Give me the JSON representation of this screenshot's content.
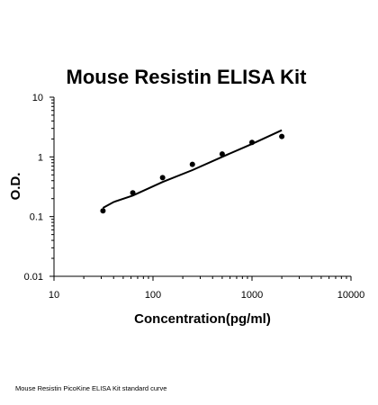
{
  "chart_data": {
    "type": "scatter",
    "title": "Mouse Resistin ELISA Kit",
    "xlabel": "Concentration(pg/ml)",
    "ylabel": "O.D.",
    "xscale": "log",
    "yscale": "log",
    "xlim": [
      10,
      10000
    ],
    "ylim": [
      0.01,
      10
    ],
    "x_ticks": [
      "10",
      "100",
      "1000",
      "10000"
    ],
    "y_ticks": [
      "0.01",
      "0.1",
      "1",
      "10"
    ],
    "grid": false,
    "legend": "none",
    "series": [
      {
        "x": [
          31.25,
          62.5,
          125,
          250,
          500,
          1000,
          2000
        ],
        "y": [
          0.125,
          0.25,
          0.45,
          0.75,
          1.12,
          1.75,
          2.2
        ]
      }
    ],
    "fit_curve": {
      "x": [
        31.25,
        40,
        62.5,
        125,
        250,
        500,
        1000,
        2000
      ],
      "y": [
        0.14,
        0.175,
        0.225,
        0.38,
        0.6,
        1.0,
        1.65,
        2.8
      ]
    }
  },
  "caption": "Mouse Resistin PicoKine ELISA Kit standard curve"
}
